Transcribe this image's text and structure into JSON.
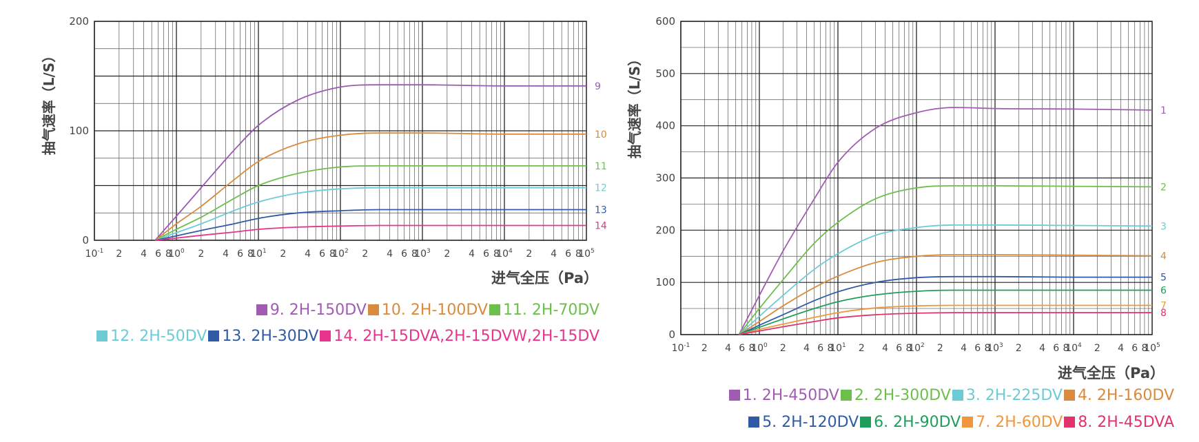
{
  "chart_data": [
    {
      "type": "line",
      "ylabel": "抽气速率（L/S）",
      "xlabel": "进气全压（Pa）",
      "x_scale": "log",
      "xlim": [
        0.1,
        100000
      ],
      "ylim": [
        0,
        200
      ],
      "y_ticks": [
        "0",
        "100",
        "200"
      ],
      "x_tick_labels": [
        {
          "x": 0.1,
          "base": "10",
          "exp": "-1"
        },
        {
          "x": 0.2,
          "base": "2",
          "exp": ""
        },
        {
          "x": 0.4,
          "base": "4",
          "exp": ""
        },
        {
          "x": 0.6,
          "base": "6",
          "exp": ""
        },
        {
          "x": 0.8,
          "base": "8",
          "exp": ""
        },
        {
          "x": 1,
          "base": "10",
          "exp": "0"
        },
        {
          "x": 2,
          "base": "2",
          "exp": ""
        },
        {
          "x": 4,
          "base": "4",
          "exp": ""
        },
        {
          "x": 6,
          "base": "6",
          "exp": ""
        },
        {
          "x": 8,
          "base": "8",
          "exp": ""
        },
        {
          "x": 10,
          "base": "10",
          "exp": "1"
        },
        {
          "x": 20,
          "base": "2",
          "exp": ""
        },
        {
          "x": 40,
          "base": "4",
          "exp": ""
        },
        {
          "x": 60,
          "base": "6",
          "exp": ""
        },
        {
          "x": 80,
          "base": "8",
          "exp": ""
        },
        {
          "x": 100,
          "base": "10",
          "exp": "2"
        },
        {
          "x": 200,
          "base": "2",
          "exp": ""
        },
        {
          "x": 400,
          "base": "4",
          "exp": ""
        },
        {
          "x": 600,
          "base": "6",
          "exp": ""
        },
        {
          "x": 800,
          "base": "8",
          "exp": ""
        },
        {
          "x": 1000,
          "base": "10",
          "exp": "3"
        },
        {
          "x": 2000,
          "base": "2",
          "exp": ""
        },
        {
          "x": 4000,
          "base": "4",
          "exp": ""
        },
        {
          "x": 6000,
          "base": "6",
          "exp": ""
        },
        {
          "x": 8000,
          "base": "8",
          "exp": ""
        },
        {
          "x": 10000,
          "base": "10",
          "exp": "4"
        },
        {
          "x": 20000,
          "base": "2",
          "exp": ""
        },
        {
          "x": 40000,
          "base": "4",
          "exp": ""
        },
        {
          "x": 60000,
          "base": "6",
          "exp": ""
        },
        {
          "x": 80000,
          "base": "8",
          "exp": ""
        },
        {
          "x": 100000,
          "base": "10",
          "exp": "5"
        }
      ],
      "grid": true,
      "series": [
        {
          "name": "9. 2H-150DV",
          "end_label": "9",
          "color": "#9b59b6",
          "x": [
            0.55,
            1,
            2,
            5,
            10,
            30,
            100,
            300,
            1000,
            10000,
            100000
          ],
          "y": [
            0,
            22,
            48,
            82,
            105,
            128,
            140,
            142,
            142,
            141,
            141
          ]
        },
        {
          "name": "10. 2H-100DV",
          "end_label": "10",
          "color": "#d98a3c",
          "x": [
            0.55,
            1,
            2,
            5,
            10,
            30,
            100,
            300,
            1000,
            10000,
            100000
          ],
          "y": [
            0,
            15,
            31,
            55,
            72,
            88,
            96,
            98,
            98,
            97,
            97
          ]
        },
        {
          "name": "11. 2H-70DV",
          "end_label": "11",
          "color": "#6cbf4a",
          "x": [
            0.55,
            1,
            2,
            5,
            10,
            30,
            100,
            300,
            1000,
            10000,
            100000
          ],
          "y": [
            0,
            10,
            21,
            38,
            50,
            61,
            67,
            68,
            68,
            68,
            68
          ]
        },
        {
          "name": "12. 2H-50DV",
          "end_label": "12",
          "color": "#6dcbd6",
          "x": [
            0.55,
            1,
            2,
            5,
            10,
            30,
            100,
            300,
            1000,
            10000,
            100000
          ],
          "y": [
            0,
            7,
            15,
            27,
            35,
            43,
            47,
            48,
            48,
            48,
            48
          ]
        },
        {
          "name": "13. 2H-30DV",
          "end_label": "13",
          "color": "#2e5aa6",
          "x": [
            0.55,
            1,
            2,
            5,
            10,
            30,
            100,
            300,
            1000,
            10000,
            100000
          ],
          "y": [
            0,
            4,
            9,
            15,
            20,
            25,
            27,
            28,
            28,
            28,
            28
          ]
        },
        {
          "name": "14. 2H-15DVA,2H-15DVW,2H-15DV",
          "end_label": "14",
          "color": "#e6358a",
          "x": [
            0.55,
            1,
            2,
            5,
            10,
            30,
            100,
            300,
            1000,
            10000,
            100000
          ],
          "y": [
            0,
            2,
            4.5,
            7.5,
            10,
            12,
            13,
            13.5,
            13.5,
            13.5,
            13.5
          ]
        }
      ]
    },
    {
      "type": "line",
      "ylabel": "抽气速率（L/S）",
      "xlabel": "进气全压（Pa）",
      "x_scale": "log",
      "xlim": [
        0.1,
        100000
      ],
      "ylim": [
        0,
        600
      ],
      "y_ticks": [
        "0",
        "100",
        "200",
        "300",
        "400",
        "500",
        "600"
      ],
      "x_tick_labels": [
        {
          "x": 0.1,
          "base": "10",
          "exp": "-1"
        },
        {
          "x": 0.2,
          "base": "2",
          "exp": ""
        },
        {
          "x": 0.4,
          "base": "4",
          "exp": ""
        },
        {
          "x": 0.6,
          "base": "6",
          "exp": ""
        },
        {
          "x": 0.8,
          "base": "8",
          "exp": ""
        },
        {
          "x": 1,
          "base": "10",
          "exp": "0"
        },
        {
          "x": 2,
          "base": "2",
          "exp": ""
        },
        {
          "x": 4,
          "base": "4",
          "exp": ""
        },
        {
          "x": 6,
          "base": "6",
          "exp": ""
        },
        {
          "x": 8,
          "base": "8",
          "exp": ""
        },
        {
          "x": 10,
          "base": "10",
          "exp": "1"
        },
        {
          "x": 20,
          "base": "2",
          "exp": ""
        },
        {
          "x": 40,
          "base": "4",
          "exp": ""
        },
        {
          "x": 60,
          "base": "6",
          "exp": ""
        },
        {
          "x": 80,
          "base": "8",
          "exp": ""
        },
        {
          "x": 100,
          "base": "10",
          "exp": "2"
        },
        {
          "x": 200,
          "base": "2",
          "exp": ""
        },
        {
          "x": 400,
          "base": "4",
          "exp": ""
        },
        {
          "x": 600,
          "base": "6",
          "exp": ""
        },
        {
          "x": 800,
          "base": "8",
          "exp": ""
        },
        {
          "x": 1000,
          "base": "10",
          "exp": "3"
        },
        {
          "x": 2000,
          "base": "2",
          "exp": ""
        },
        {
          "x": 4000,
          "base": "4",
          "exp": ""
        },
        {
          "x": 6000,
          "base": "6",
          "exp": ""
        },
        {
          "x": 8000,
          "base": "8",
          "exp": ""
        },
        {
          "x": 10000,
          "base": "10",
          "exp": "4"
        },
        {
          "x": 20000,
          "base": "2",
          "exp": ""
        },
        {
          "x": 40000,
          "base": "4",
          "exp": ""
        },
        {
          "x": 60000,
          "base": "6",
          "exp": ""
        },
        {
          "x": 80000,
          "base": "8",
          "exp": ""
        },
        {
          "x": 100000,
          "base": "10",
          "exp": "5"
        }
      ],
      "grid": true,
      "series": [
        {
          "name": "1. 2H-450DV",
          "end_label": "1",
          "color": "#a25bb3",
          "x": [
            0.55,
            1,
            2,
            5,
            10,
            30,
            100,
            300,
            1000,
            10000,
            100000
          ],
          "y": [
            0,
            75,
            160,
            260,
            330,
            395,
            425,
            435,
            433,
            432,
            430
          ]
        },
        {
          "name": "2. 2H-300DV",
          "end_label": "2",
          "color": "#6cbf4a",
          "x": [
            0.55,
            1,
            2,
            5,
            10,
            30,
            100,
            300,
            1000,
            10000,
            100000
          ],
          "y": [
            0,
            50,
            105,
            175,
            215,
            260,
            281,
            285,
            285,
            284,
            283
          ]
        },
        {
          "name": "3. 2H-225DV",
          "end_label": "3",
          "color": "#6dcbd6",
          "x": [
            0.55,
            1,
            2,
            5,
            10,
            30,
            100,
            300,
            1000,
            10000,
            100000
          ],
          "y": [
            0,
            35,
            75,
            125,
            155,
            190,
            205,
            210,
            210,
            209,
            208
          ]
        },
        {
          "name": "4. 2H-160DV",
          "end_label": "4",
          "color": "#d98a3c",
          "x": [
            0.55,
            1,
            2,
            5,
            10,
            30,
            100,
            300,
            1000,
            10000,
            100000
          ],
          "y": [
            0,
            25,
            55,
            90,
            112,
            138,
            150,
            153,
            153,
            152,
            151
          ]
        },
        {
          "name": "5. 2H-120DV",
          "end_label": "5",
          "color": "#2e5aa6",
          "x": [
            0.55,
            1,
            2,
            5,
            10,
            30,
            100,
            300,
            1000,
            10000,
            100000
          ],
          "y": [
            0,
            18,
            38,
            65,
            82,
            100,
            109,
            111,
            111,
            110,
            110
          ]
        },
        {
          "name": "6. 2H-90DV",
          "end_label": "6",
          "color": "#1e9e5a",
          "x": [
            0.55,
            1,
            2,
            5,
            10,
            30,
            100,
            300,
            1000,
            10000,
            100000
          ],
          "y": [
            0,
            14,
            30,
            50,
            63,
            76,
            83,
            85,
            85,
            85,
            85
          ]
        },
        {
          "name": "7. 2H-60DV",
          "end_label": "7",
          "color": "#f0963c",
          "x": [
            0.55,
            1,
            2,
            5,
            10,
            30,
            100,
            300,
            1000,
            10000,
            100000
          ],
          "y": [
            0,
            10,
            20,
            33,
            42,
            51,
            55,
            56,
            56,
            56,
            56
          ]
        },
        {
          "name": "8. 2H-45DVA",
          "end_label": "8",
          "color": "#e0336b",
          "x": [
            0.55,
            1,
            2,
            5,
            10,
            30,
            100,
            300,
            1000,
            10000,
            100000
          ],
          "y": [
            0,
            7,
            15,
            25,
            32,
            38,
            41,
            42,
            42,
            42,
            42
          ]
        }
      ]
    }
  ],
  "legends": [
    {
      "rows": [
        [
          {
            "label": "9. 2H-150DV",
            "color": "#a25bb3"
          },
          {
            "label": "10. 2H-100DV",
            "color": "#d98a3c"
          },
          {
            "label": "11.  2H-70DV",
            "color": "#6cbf4a"
          }
        ],
        [
          {
            "label": "12. 2H-50DV",
            "color": "#6dcbd6"
          },
          {
            "label": "13. 2H-30DV",
            "color": "#2e5aa6"
          },
          {
            "label": "14. 2H-15DVA,2H-15DVW,2H-15DV",
            "color": "#e6358a"
          }
        ]
      ]
    },
    {
      "rows": [
        [
          {
            "label": "1. 2H-450DV",
            "color": "#a25bb3"
          },
          {
            "label": "2. 2H-300DV",
            "color": "#6cbf4a"
          },
          {
            "label": "3. 2H-225DV",
            "color": "#6dcbd6"
          },
          {
            "label": "4. 2H-160DV",
            "color": "#d98a3c"
          }
        ],
        [
          {
            "label": "5. 2H-120DV",
            "color": "#2e5aa6"
          },
          {
            "label": "6. 2H-90DV",
            "color": "#1e9e5a"
          },
          {
            "label": "7. 2H-60DV",
            "color": "#f0963c"
          },
          {
            "label": "8. 2H-45DVA",
            "color": "#e0336b"
          }
        ]
      ]
    }
  ]
}
